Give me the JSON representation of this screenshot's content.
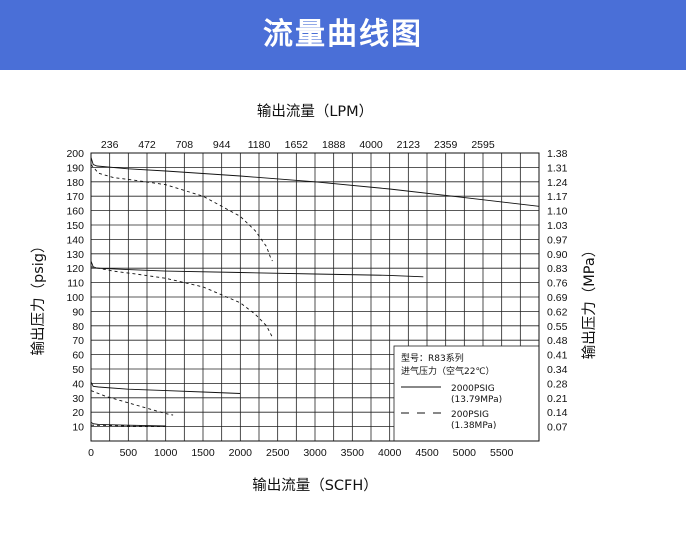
{
  "banner": {
    "title": "流量曲线图",
    "color": "#4a6fd7"
  },
  "chart_data": {
    "type": "line",
    "top_xlabel": "输出流量（LPM）",
    "top_ticks": [
      "236",
      "472",
      "708",
      "944",
      "1180",
      "1652",
      "1888",
      "4000",
      "2123",
      "2359",
      "2595"
    ],
    "xlabel": "输出流量（SCFH）",
    "xticks": [
      0,
      500,
      1000,
      1500,
      2000,
      2500,
      3000,
      3500,
      4000,
      4500,
      5000,
      5500
    ],
    "xlim": [
      0,
      6000
    ],
    "ylabel": "输出压力（psig）",
    "yticks": [
      10,
      20,
      30,
      40,
      50,
      60,
      70,
      80,
      90,
      100,
      110,
      120,
      130,
      140,
      150,
      160,
      170,
      180,
      190,
      200
    ],
    "ylim": [
      0,
      200
    ],
    "right_ylabel": "输出压力（MPa）",
    "right_ticks": [
      "1.38",
      "1.31",
      "1.24",
      "1.17",
      "1.10",
      "1.03",
      "0.97",
      "0.90",
      "0.83",
      "0.76",
      "0.69",
      "0.62",
      "0.55",
      "0.48",
      "0.41",
      "0.34",
      "0.28",
      "0.21",
      "0.14",
      "0.07"
    ],
    "grid": true,
    "legend": {
      "position": "bottom-right",
      "model": "型号：R83系列",
      "inlet": "进气压力（空气22℃）",
      "entries": [
        {
          "style": "solid",
          "label": "2000PSIG",
          "sublabel": "(13.79MPa)"
        },
        {
          "style": "dashed",
          "label": "200PSIG",
          "sublabel": "(1.38MPa)"
        }
      ]
    },
    "series": [
      {
        "style": "solid",
        "x": [
          0,
          30,
          80,
          500,
          1000,
          2000,
          3000,
          4000,
          5000,
          6000
        ],
        "y": [
          197,
          192,
          191,
          189,
          187.5,
          184,
          180,
          175,
          169,
          163
        ]
      },
      {
        "style": "dashed",
        "x": [
          0,
          100,
          300,
          600,
          1000,
          1500,
          2000,
          2200,
          2350,
          2400,
          2430
        ],
        "y": [
          192,
          186,
          183,
          181,
          178,
          170,
          156,
          146,
          135,
          128,
          125
        ]
      },
      {
        "style": "solid",
        "x": [
          0,
          30,
          80,
          500,
          1000,
          2000,
          3000,
          4000,
          4450
        ],
        "y": [
          125,
          121,
          120,
          119,
          118,
          117,
          116,
          115,
          114
        ]
      },
      {
        "style": "dashed",
        "x": [
          0,
          100,
          300,
          600,
          1000,
          1500,
          2000,
          2200,
          2350,
          2400,
          2430
        ],
        "y": [
          121,
          120,
          118,
          116,
          113,
          107,
          96,
          88,
          80,
          75,
          72
        ]
      },
      {
        "style": "solid",
        "x": [
          0,
          30,
          100,
          500,
          1000,
          1500,
          2000
        ],
        "y": [
          41,
          38,
          37.5,
          36,
          35,
          34,
          33
        ]
      },
      {
        "style": "dashed",
        "x": [
          0,
          200,
          400,
          600,
          800,
          1000,
          1100
        ],
        "y": [
          35,
          31,
          28,
          25,
          22,
          19,
          18
        ]
      },
      {
        "style": "solid",
        "x": [
          0,
          30,
          100,
          500,
          1000
        ],
        "y": [
          13,
          12,
          11.5,
          11,
          10.5
        ]
      },
      {
        "style": "dashed",
        "x": [
          0,
          200,
          400,
          600,
          800,
          1000
        ],
        "y": [
          11,
          10.8,
          10.5,
          10.3,
          10.2,
          10
        ]
      }
    ]
  }
}
